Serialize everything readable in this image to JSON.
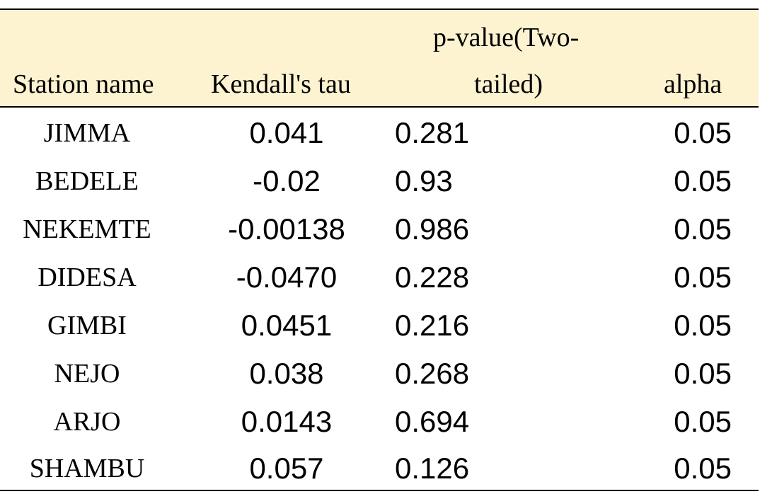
{
  "table": {
    "headers": {
      "station": "Station name",
      "tau": "Kendall's tau",
      "p_line1": "p-value(Two-",
      "p_line2": "tailed)",
      "alpha": "alpha"
    },
    "rows": [
      {
        "station": "JIMMA",
        "tau": "0.041",
        "p": "0.281",
        "alpha": "0.05"
      },
      {
        "station": "BEDELE",
        "tau": "-0.02",
        "p": "0.93",
        "alpha": "0.05"
      },
      {
        "station": "NEKEMTE",
        "tau": "-0.00138",
        "p": "0.986",
        "alpha": "0.05"
      },
      {
        "station": "DIDESA",
        "tau": "-0.0470",
        "p": "0.228",
        "alpha": "0.05"
      },
      {
        "station": "GIMBI",
        "tau": "0.0451",
        "p": "0.216",
        "alpha": "0.05"
      },
      {
        "station": "NEJO",
        "tau": "0.038",
        "p": "0.268",
        "alpha": "0.05"
      },
      {
        "station": "ARJO",
        "tau": "0.0143",
        "p": "0.694",
        "alpha": "0.05"
      },
      {
        "station": "SHAMBU",
        "tau": "0.057",
        "p": "0.126",
        "alpha": "0.05"
      }
    ]
  },
  "colors": {
    "header_background": "#fdf3d1",
    "rule": "#000000"
  }
}
